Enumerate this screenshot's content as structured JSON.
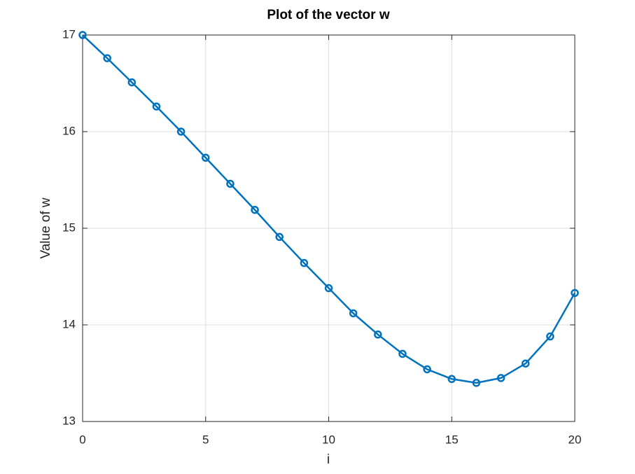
{
  "chart_data": {
    "type": "line",
    "title": "Plot of the vector w",
    "xlabel": "i",
    "ylabel": "Value of w",
    "x": [
      0,
      1,
      2,
      3,
      4,
      5,
      6,
      7,
      8,
      9,
      10,
      11,
      12,
      13,
      14,
      15,
      16,
      17,
      18,
      19,
      20
    ],
    "series": [
      {
        "name": "w",
        "color": "#0072bd",
        "values": [
          17,
          16.76,
          16.51,
          16.26,
          16.0,
          15.73,
          15.46,
          15.19,
          14.91,
          14.64,
          14.38,
          14.12,
          13.9,
          13.7,
          13.54,
          13.44,
          13.4,
          13.45,
          13.6,
          13.88,
          14.33
        ]
      }
    ],
    "xlim": [
      0,
      20
    ],
    "ylim": [
      13,
      17
    ],
    "xticks": [
      0,
      5,
      10,
      15,
      20
    ],
    "yticks": [
      13,
      14,
      15,
      16,
      17
    ],
    "grid": true
  }
}
